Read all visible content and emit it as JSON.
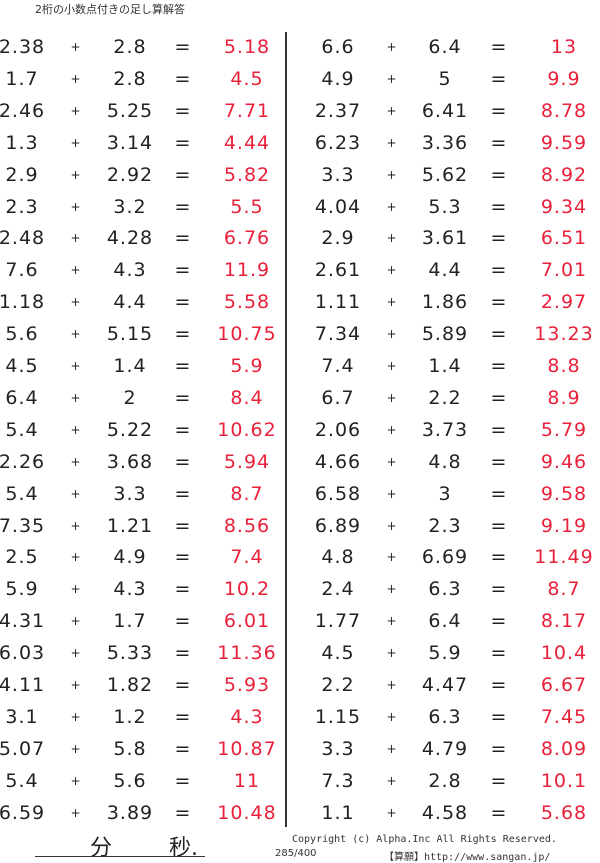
{
  "title": "2桁の小数点付きの足し算解答",
  "plus_symbol": "+",
  "equals_symbol": "=",
  "left_problems": [
    [
      "2.38",
      "2.8",
      "5.18"
    ],
    [
      "1.7",
      "2.8",
      "4.5"
    ],
    [
      "2.46",
      "5.25",
      "7.71"
    ],
    [
      "1.3",
      "3.14",
      "4.44"
    ],
    [
      "2.9",
      "2.92",
      "5.82"
    ],
    [
      "2.3",
      "3.2",
      "5.5"
    ],
    [
      "2.48",
      "4.28",
      "6.76"
    ],
    [
      "7.6",
      "4.3",
      "11.9"
    ],
    [
      "1.18",
      "4.4",
      "5.58"
    ],
    [
      "5.6",
      "5.15",
      "10.75"
    ],
    [
      "4.5",
      "1.4",
      "5.9"
    ],
    [
      "6.4",
      "2",
      "8.4"
    ],
    [
      "5.4",
      "5.22",
      "10.62"
    ],
    [
      "2.26",
      "3.68",
      "5.94"
    ],
    [
      "5.4",
      "3.3",
      "8.7"
    ],
    [
      "7.35",
      "1.21",
      "8.56"
    ],
    [
      "2.5",
      "4.9",
      "7.4"
    ],
    [
      "5.9",
      "4.3",
      "10.2"
    ],
    [
      "4.31",
      "1.7",
      "6.01"
    ],
    [
      "6.03",
      "5.33",
      "11.36"
    ],
    [
      "4.11",
      "1.82",
      "5.93"
    ],
    [
      "3.1",
      "1.2",
      "4.3"
    ],
    [
      "5.07",
      "5.8",
      "10.87"
    ],
    [
      "5.4",
      "5.6",
      "11"
    ],
    [
      "6.59",
      "3.89",
      "10.48"
    ]
  ],
  "right_problems": [
    [
      "6.6",
      "6.4",
      "13"
    ],
    [
      "4.9",
      "5",
      "9.9"
    ],
    [
      "2.37",
      "6.41",
      "8.78"
    ],
    [
      "6.23",
      "3.36",
      "9.59"
    ],
    [
      "3.3",
      "5.62",
      "8.92"
    ],
    [
      "4.04",
      "5.3",
      "9.34"
    ],
    [
      "2.9",
      "3.61",
      "6.51"
    ],
    [
      "2.61",
      "4.4",
      "7.01"
    ],
    [
      "1.11",
      "1.86",
      "2.97"
    ],
    [
      "7.34",
      "5.89",
      "13.23"
    ],
    [
      "7.4",
      "1.4",
      "8.8"
    ],
    [
      "6.7",
      "2.2",
      "8.9"
    ],
    [
      "2.06",
      "3.73",
      "5.79"
    ],
    [
      "4.66",
      "4.8",
      "9.46"
    ],
    [
      "6.58",
      "3",
      "9.58"
    ],
    [
      "6.89",
      "2.3",
      "9.19"
    ],
    [
      "4.8",
      "6.69",
      "11.49"
    ],
    [
      "2.4",
      "6.3",
      "8.7"
    ],
    [
      "1.77",
      "6.4",
      "8.17"
    ],
    [
      "4.5",
      "5.9",
      "10.4"
    ],
    [
      "2.2",
      "4.47",
      "6.67"
    ],
    [
      "1.15",
      "6.3",
      "7.45"
    ],
    [
      "3.3",
      "4.79",
      "8.09"
    ],
    [
      "7.3",
      "2.8",
      "10.1"
    ],
    [
      "1.1",
      "4.58",
      "5.68"
    ]
  ],
  "footer": {
    "minutes_label": "分",
    "seconds_label": "秒.",
    "copyright": "Copyright (c)  Alpha.Inc All Rights Reserved.",
    "page_number": "285/400",
    "site": "【算願】http://www.sangan.jp/"
  },
  "colors": {
    "answer": "#e8203a",
    "text": "#222222"
  }
}
